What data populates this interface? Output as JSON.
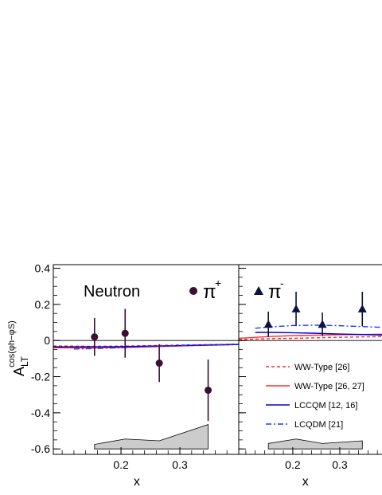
{
  "chart_data": {
    "type": "scatter",
    "ylabel_main": "A",
    "ylabel_sub": "LT",
    "ylabel_sup": "cos(φh−φS)",
    "ylim": [
      -0.63,
      0.42
    ],
    "yticks": [
      -0.6,
      -0.4,
      -0.2,
      0,
      0.2,
      0.4
    ],
    "ytick_labels": [
      "-0.6",
      "-0.4",
      "-0.2",
      "0",
      "0.2",
      "0.4"
    ],
    "xlim": [
      0.085,
      0.4
    ],
    "xticks": [
      0.2,
      0.3
    ],
    "xtick_labels": [
      "0.2",
      "0.3"
    ],
    "panels": [
      {
        "xlabel": "x",
        "target_label": "Neutron",
        "hadron_label": "π",
        "hadron_charge": "+",
        "marker": "circle",
        "marker_color": "#3a0f33",
        "points": [
          {
            "x": 0.155,
            "y": 0.02,
            "err": 0.105
          },
          {
            "x": 0.207,
            "y": 0.04,
            "err": 0.135
          },
          {
            "x": 0.265,
            "y": -0.125,
            "err": 0.105
          },
          {
            "x": 0.348,
            "y": -0.275,
            "err": 0.17
          }
        ],
        "systematic_band": {
          "x": [
            0.155,
            0.207,
            0.265,
            0.348
          ],
          "top": [
            -0.575,
            -0.545,
            -0.555,
            -0.465
          ],
          "base": -0.6
        },
        "curves": [
          {
            "style": "ww26",
            "x": [
              0.085,
              0.15,
              0.2,
              0.25,
              0.3,
              0.4
            ],
            "y": [
              -0.03,
              -0.032,
              -0.031,
              -0.028,
              -0.025,
              -0.02
            ]
          },
          {
            "style": "ww2627",
            "x": [
              0.085,
              0.15,
              0.2,
              0.25,
              0.3,
              0.4
            ],
            "y": [
              -0.04,
              -0.041,
              -0.039,
              -0.035,
              -0.03,
              -0.022
            ]
          },
          {
            "style": "lccqm",
            "x": [
              0.085,
              0.15,
              0.2,
              0.25,
              0.3,
              0.4
            ],
            "y": [
              -0.035,
              -0.035,
              -0.034,
              -0.031,
              -0.028,
              -0.022
            ]
          },
          {
            "style": "lcqdm",
            "x": [
              0.12,
              0.15,
              0.2,
              0.25,
              0.3,
              0.4
            ],
            "y": [
              -0.047,
              -0.045,
              -0.04,
              -0.033,
              -0.027,
              -0.02
            ]
          }
        ]
      },
      {
        "xlabel": "x",
        "target_label": "",
        "hadron_label": "π",
        "hadron_charge": "-",
        "marker": "triangle",
        "marker_color": "#0b1240",
        "points": [
          {
            "x": 0.148,
            "y": 0.09,
            "err": 0.07
          },
          {
            "x": 0.207,
            "y": 0.175,
            "err": 0.095
          },
          {
            "x": 0.263,
            "y": 0.09,
            "err": 0.065
          },
          {
            "x": 0.348,
            "y": 0.175,
            "err": 0.095
          }
        ],
        "systematic_band": {
          "x": [
            0.148,
            0.207,
            0.263,
            0.348
          ],
          "top": [
            -0.57,
            -0.545,
            -0.57,
            -0.555
          ],
          "base": -0.6
        },
        "curves": [
          {
            "style": "ww26",
            "x": [
              0.085,
              0.15,
              0.2,
              0.25,
              0.3,
              0.4
            ],
            "y": [
              0.005,
              0.01,
              0.012,
              0.015,
              0.018,
              0.022
            ]
          },
          {
            "style": "ww2627",
            "x": [
              0.085,
              0.15,
              0.2,
              0.25,
              0.3,
              0.4
            ],
            "y": [
              0.012,
              0.022,
              0.027,
              0.03,
              0.032,
              0.035
            ]
          },
          {
            "style": "lccqm",
            "x": [
              0.12,
              0.15,
              0.2,
              0.25,
              0.3,
              0.4
            ],
            "y": [
              0.045,
              0.045,
              0.043,
              0.04,
              0.036,
              0.03
            ]
          },
          {
            "style": "lcqdm",
            "x": [
              0.12,
              0.15,
              0.2,
              0.25,
              0.3,
              0.4
            ],
            "y": [
              0.068,
              0.075,
              0.083,
              0.085,
              0.082,
              0.072
            ]
          }
        ]
      }
    ],
    "legend": [
      {
        "style": "ww26",
        "label": "WW-Type [26]"
      },
      {
        "style": "ww2627",
        "label": "WW-Type [26, 27]"
      },
      {
        "style": "lccqm",
        "label": "LCCQM [12, 16]"
      },
      {
        "style": "lcqdm",
        "label": "LCQDM [21]"
      }
    ],
    "legend_location": "lower-right",
    "styles": {
      "ww26": {
        "color": "#ff2a2a",
        "dash": "4,3"
      },
      "ww2627": {
        "color": "#ff2a2a",
        "dash": ""
      },
      "lccqm": {
        "color": "#0000cc",
        "dash": ""
      },
      "lcqdm": {
        "color": "#1a3bff",
        "dash": "7,3,2,3"
      }
    },
    "band_color": "#cccccc",
    "zero_line": true
  }
}
